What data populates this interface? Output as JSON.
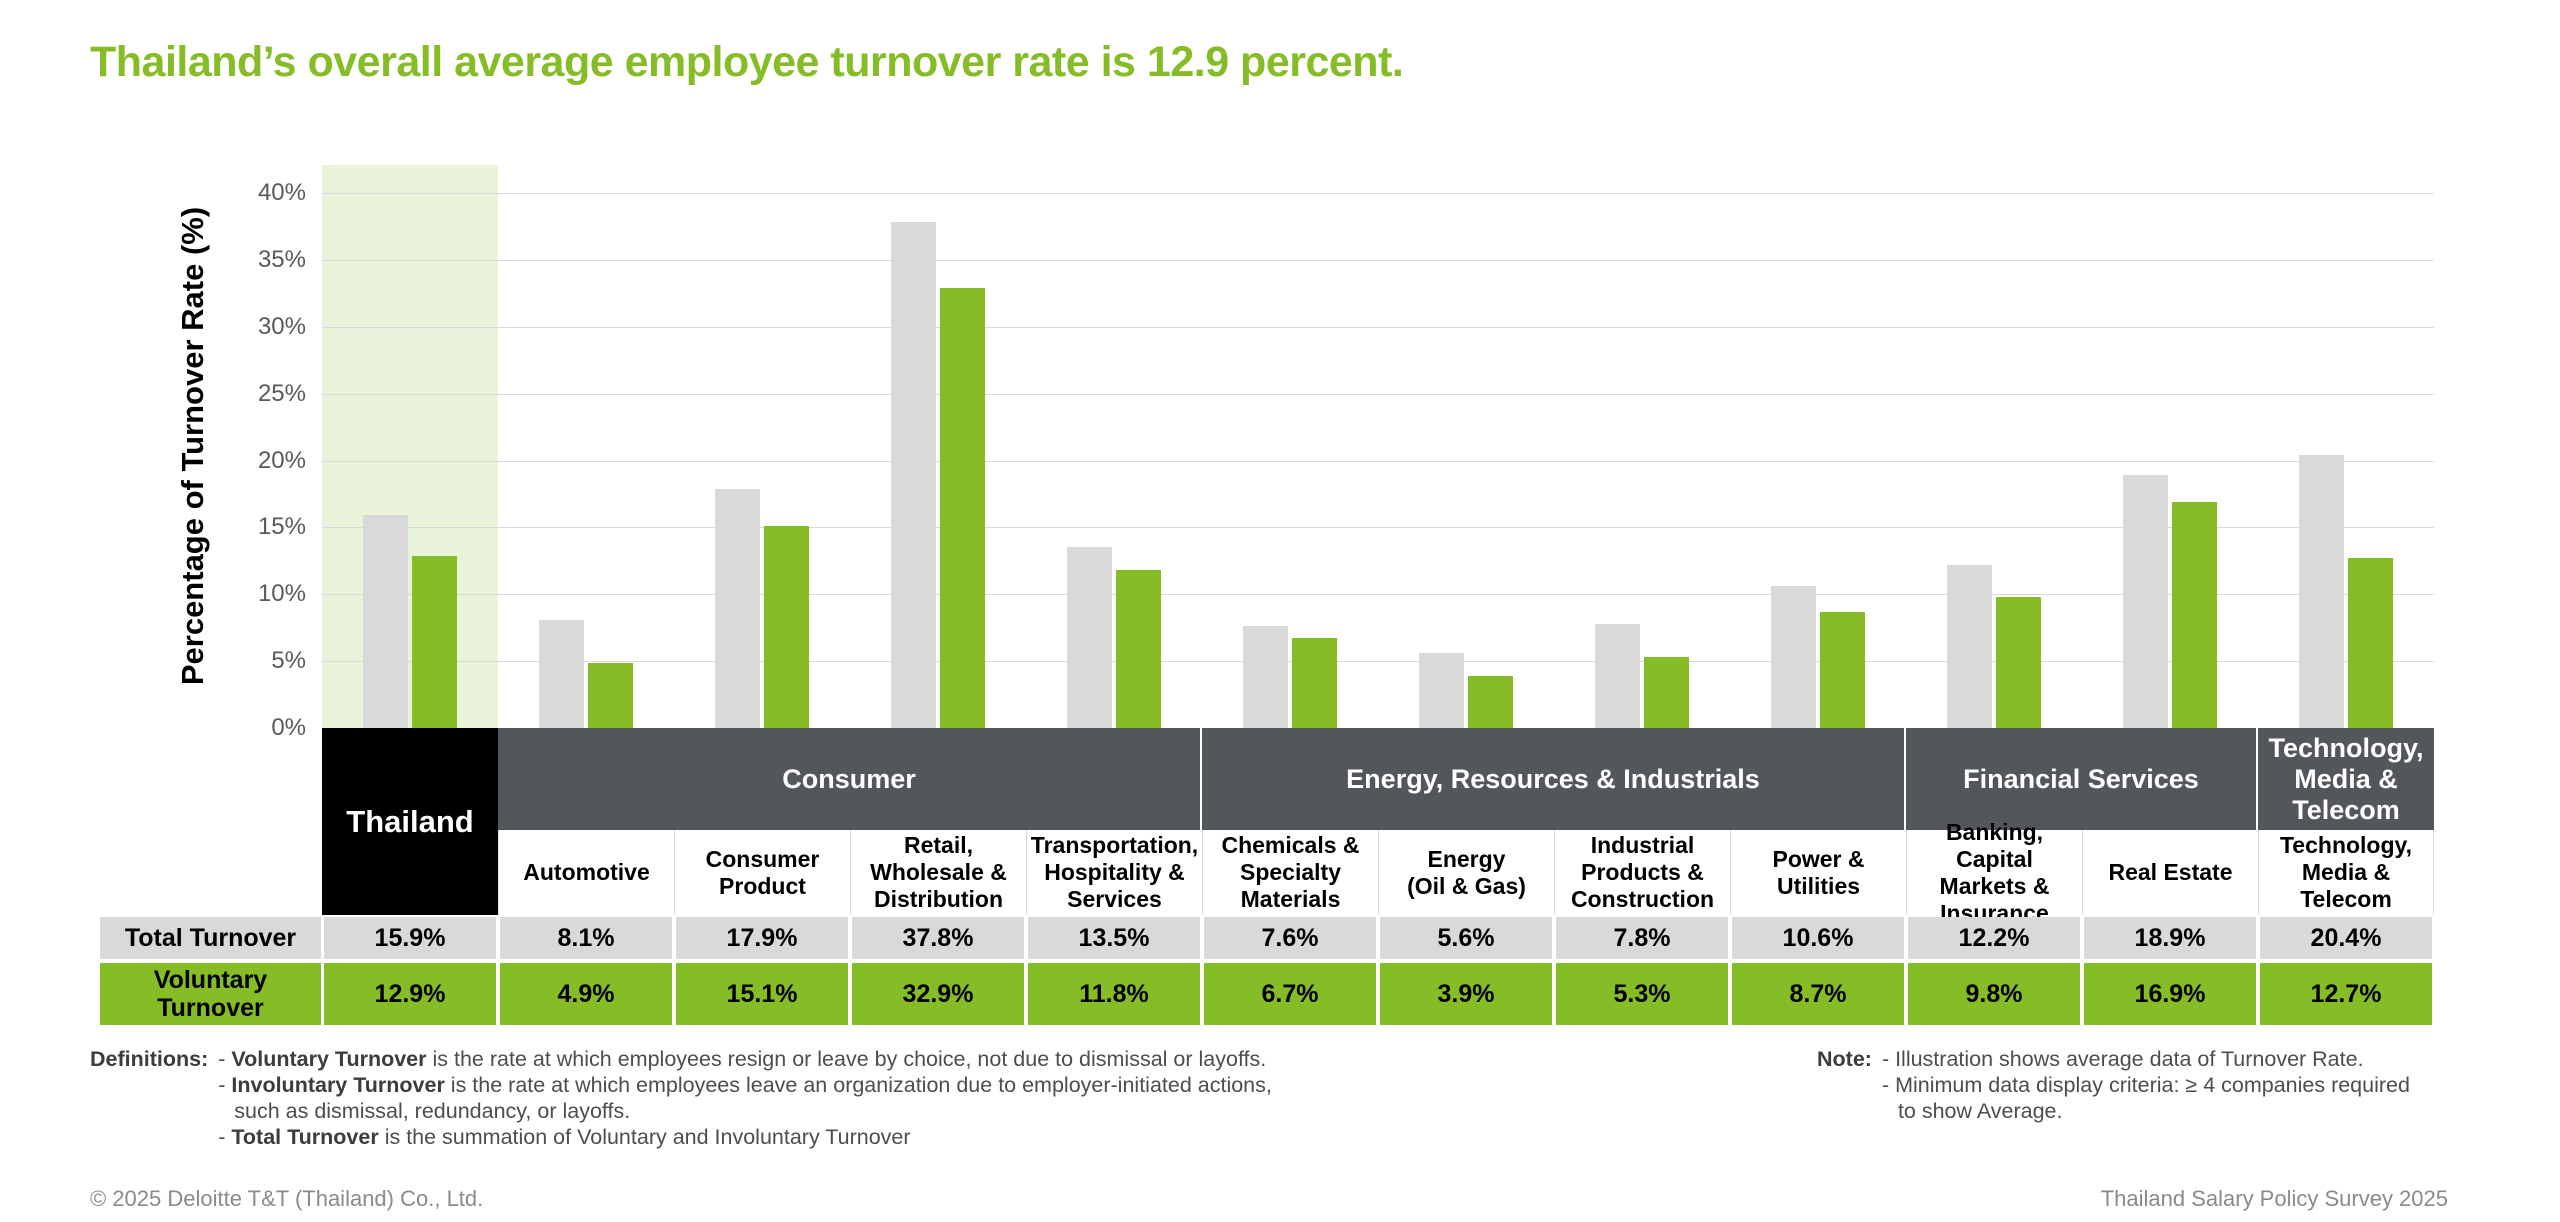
{
  "chart_data": {
    "type": "bar",
    "title": "Thailand’s overall average employee turnover rate is 12.9 percent.",
    "title_color": "#86BC25",
    "xlabel": "",
    "ylabel": "Percentage of Turnover Rate (%)",
    "ylim": [
      0,
      42
    ],
    "yticks": [
      0,
      5,
      10,
      15,
      20,
      25,
      30,
      35,
      40
    ],
    "ytick_suffix": "%",
    "grid": true,
    "legend_position": "none",
    "categories": [
      "Thailand",
      "Automotive",
      "Consumer Product",
      "Retail, Wholesale & Distribution",
      "Transportation, Hospitality & Services",
      "Chemicals & Specialty Materials",
      "Energy (Oil & Gas)",
      "Industrial Products & Construction",
      "Power & Utilities",
      "Banking, Capital Markets & Insurance",
      "Real Estate",
      "Technology, Media & Telecom"
    ],
    "series": [
      {
        "name": "Total Turnover",
        "color": "#D9D9D9",
        "values": [
          15.9,
          8.1,
          17.9,
          37.8,
          13.5,
          7.6,
          5.6,
          7.8,
          10.6,
          12.2,
          18.9,
          20.4
        ]
      },
      {
        "name": "Voluntary Turnover",
        "color": "#86BC25",
        "values": [
          12.9,
          4.9,
          15.1,
          32.9,
          11.8,
          6.7,
          3.9,
          5.3,
          8.7,
          9.8,
          16.9,
          12.7
        ]
      }
    ],
    "highlight": {
      "category": "Thailand",
      "color": "#E9F3D9"
    },
    "groups": [
      {
        "label": "Thailand",
        "span": 1,
        "variant": "country"
      },
      {
        "label": "Consumer",
        "span": 4,
        "variant": "sector"
      },
      {
        "label": "Energy, Resources & Industrials",
        "span": 4,
        "variant": "sector"
      },
      {
        "label": "Financial Services",
        "span": 2,
        "variant": "sector"
      },
      {
        "label": "Technology,\nMedia &\nTelecom",
        "span": 1,
        "variant": "sector"
      }
    ]
  },
  "table": {
    "country_header": "Thailand",
    "industry_headers": [
      "Automotive",
      "Consumer\nProduct",
      "Retail,\nWholesale &\nDistribution",
      "Transportation,\nHospitality &\nServices",
      "Chemicals &\nSpecialty\nMaterials",
      "Energy\n(Oil & Gas)",
      "Industrial\nProducts &\nConstruction",
      "Power &\nUtilities",
      "Banking, Capital\nMarkets &\nInsurance",
      "Real Estate",
      "Technology,\nMedia &\nTelecom"
    ],
    "rows": [
      {
        "label": "Total Turnover",
        "bg": "#D9D9D9",
        "cells": [
          "15.9%",
          "8.1%",
          "17.9%",
          "37.8%",
          "13.5%",
          "7.6%",
          "5.6%",
          "7.8%",
          "10.6%",
          "12.2%",
          "18.9%",
          "20.4%"
        ]
      },
      {
        "label": "Voluntary\nTurnover",
        "bg": "#86BC25",
        "cells": [
          "12.9%",
          "4.9%",
          "15.1%",
          "32.9%",
          "11.8%",
          "6.7%",
          "3.9%",
          "5.3%",
          "8.7%",
          "9.8%",
          "16.9%",
          "12.7%"
        ]
      }
    ]
  },
  "definitions": {
    "label": "Definitions:",
    "items": [
      {
        "indent": 0,
        "segments": [
          {
            "t": "- ",
            "b": false
          },
          {
            "t": "Voluntary Turnover",
            "b": true
          },
          {
            "t": " is the rate at which employees resign or leave by choice, not due to dismissal or layoffs.",
            "b": false
          }
        ]
      },
      {
        "indent": 0,
        "segments": [
          {
            "t": "- ",
            "b": false
          },
          {
            "t": "Involuntary Turnover",
            "b": true
          },
          {
            "t": " is the rate at which employees leave an organization due to employer-initiated actions,",
            "b": false
          }
        ]
      },
      {
        "indent": 1,
        "segments": [
          {
            "t": "such as dismissal, redundancy, or layoffs.",
            "b": false
          }
        ]
      },
      {
        "indent": 0,
        "segments": [
          {
            "t": "- ",
            "b": false
          },
          {
            "t": "Total Turnover",
            "b": true
          },
          {
            "t": " is the summation of Voluntary and Involuntary Turnover",
            "b": false
          }
        ]
      }
    ]
  },
  "note": {
    "label": "Note:",
    "items": [
      {
        "indent": 0,
        "segments": [
          {
            "t": "- Illustration shows average data of Turnover Rate.",
            "b": false
          }
        ]
      },
      {
        "indent": 0,
        "segments": [
          {
            "t": "- Minimum data display criteria: ≥ 4 companies required",
            "b": false
          }
        ]
      },
      {
        "indent": 1,
        "segments": [
          {
            "t": "to show Average.",
            "b": false
          }
        ]
      }
    ]
  },
  "footer": {
    "left": "© 2025 Deloitte T&T (Thailand) Co., Ltd.",
    "right": "Thailand Salary Policy Survey 2025"
  },
  "colors": {
    "accent_green": "#86BC25",
    "bar_gray": "#D9D9D9",
    "header_dark": "#53565A",
    "country_black": "#000000",
    "highlight_green": "#E9F3D9",
    "gridline": "#D9D9D9",
    "tick_text": "#595959"
  }
}
